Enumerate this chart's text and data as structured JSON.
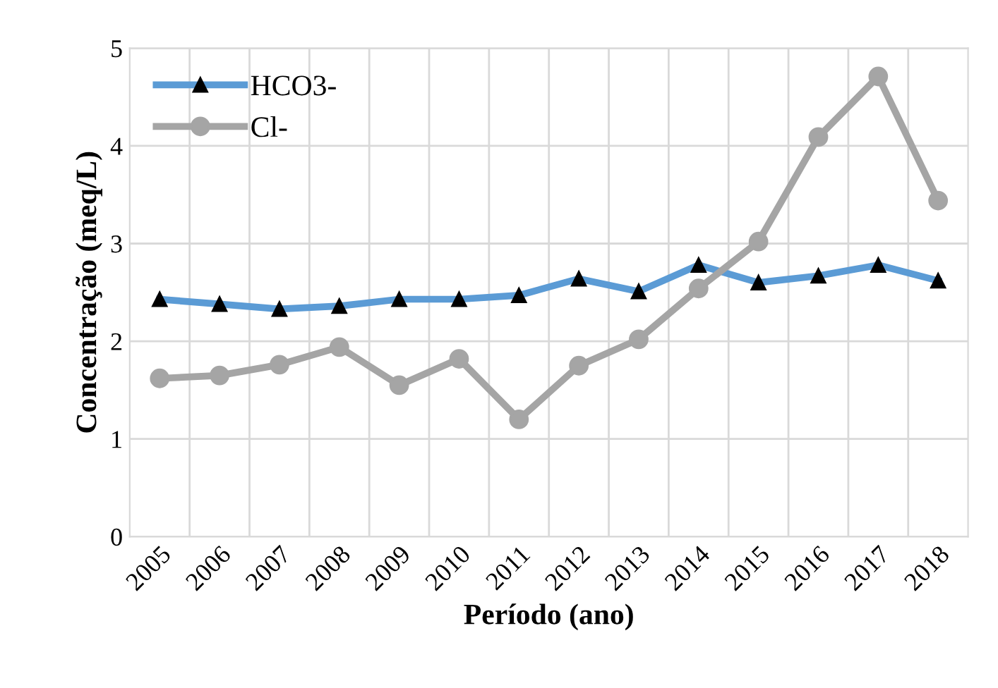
{
  "chart_data": {
    "type": "line",
    "xlabel": "Período (ano)",
    "ylabel": "Concentração (meq/L)",
    "categories": [
      "2005",
      "2006",
      "2007",
      "2008",
      "2009",
      "2010",
      "2011",
      "2012",
      "2013",
      "2014",
      "2015",
      "2016",
      "2017",
      "2018"
    ],
    "series": [
      {
        "name": "HCO3-",
        "color": "#5b9bd5",
        "marker": "triangle",
        "values": [
          2.43,
          2.38,
          2.33,
          2.36,
          2.43,
          2.43,
          2.47,
          2.64,
          2.51,
          2.78,
          2.6,
          2.67,
          2.78,
          2.62
        ]
      },
      {
        "name": "Cl-",
        "color": "#a5a5a5",
        "marker": "circle",
        "values": [
          1.62,
          1.65,
          1.76,
          1.94,
          1.55,
          1.82,
          1.2,
          1.75,
          2.02,
          2.54,
          3.02,
          4.09,
          4.71,
          3.44
        ]
      }
    ],
    "ylim": [
      0,
      5
    ],
    "yticks": [
      0,
      1,
      2,
      3,
      4,
      5
    ],
    "grid": true,
    "legend": "top left",
    "line_style": "solid"
  }
}
